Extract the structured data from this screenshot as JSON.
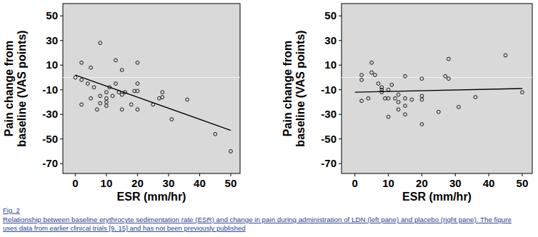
{
  "chart_data": [
    {
      "type": "scatter",
      "x_label": "ESR (mm/hr)",
      "y_label": [
        "Pain change from",
        "baseline (VAS points)"
      ],
      "xlim": [
        -4,
        53
      ],
      "xticks": [
        0,
        10,
        20,
        30,
        40,
        50
      ],
      "ylim": [
        -78,
        60
      ],
      "yticks": [
        50,
        30,
        10,
        -10,
        -30,
        -50,
        -70
      ],
      "refline": 0,
      "series": [
        {
          "type": "scatter",
          "marker": "circle-open",
          "color": "#000000",
          "x": [
            0,
            2,
            2,
            2,
            4,
            5,
            5,
            6,
            7,
            8,
            8,
            8,
            10,
            10,
            10,
            10,
            11,
            12,
            13,
            13,
            14,
            15,
            15,
            15,
            16,
            18,
            19,
            20,
            20,
            20,
            20,
            25,
            27,
            28,
            28,
            31,
            36,
            45,
            50
          ],
          "values": [
            0,
            -2,
            12,
            -22,
            -5,
            8,
            -17,
            -8,
            -26,
            28,
            -15,
            -21,
            -12,
            -17,
            -20,
            -23,
            -8,
            -15,
            14,
            -5,
            -12,
            6,
            -14,
            -26,
            -12,
            -22,
            -11,
            -11,
            -5,
            12,
            -26,
            -22,
            -17,
            -12,
            -16,
            -34,
            -18,
            -46,
            -60
          ]
        },
        {
          "type": "line",
          "line_style": "solid",
          "color": "#000000",
          "x": [
            0,
            50
          ],
          "values": [
            2,
            -43
          ]
        }
      ]
    },
    {
      "type": "scatter",
      "x_label": "ESR (mm/hr)",
      "y_label": [
        "Pain change from",
        "baseline (VAS points)"
      ],
      "xlim": [
        -4,
        53
      ],
      "xticks": [
        0,
        10,
        20,
        30,
        40,
        50
      ],
      "ylim": [
        -78,
        60
      ],
      "yticks": [
        50,
        30,
        10,
        -10,
        -30,
        -50,
        -70
      ],
      "refline": 0,
      "series": [
        {
          "type": "scatter",
          "marker": "circle-open",
          "color": "#000000",
          "x": [
            2,
            2,
            2,
            4,
            5,
            5,
            6,
            7,
            8,
            8,
            8,
            9,
            10,
            10,
            10,
            11,
            12,
            13,
            13,
            13,
            15,
            15,
            15,
            15,
            17,
            20,
            20,
            20,
            20,
            25,
            27,
            28,
            28,
            31,
            36,
            45,
            50
          ],
          "values": [
            2,
            -2,
            -19,
            -17,
            4,
            12,
            2,
            -5,
            -10,
            -12,
            -8,
            -17,
            -10,
            -32,
            -17,
            -6,
            -17,
            -14,
            -20,
            -26,
            -30,
            -23,
            -17,
            1,
            -18,
            -1,
            -15,
            -18,
            -38,
            -28,
            1,
            -1,
            15,
            -24,
            -16,
            18,
            -12
          ]
        },
        {
          "type": "line",
          "line_style": "solid",
          "color": "#000000",
          "x": [
            0,
            50
          ],
          "values": [
            -12,
            -9
          ]
        }
      ]
    }
  ],
  "figure_label": "Fig. 2",
  "caption": [
    "Relationship between baseline erythrocyte sedimentation rate (ESR) and change in pain during administration of LDN (left pane) and placebo (right pane). The figure",
    "uses data from earlier clinical trials [9, 15] and has not been previously published"
  ]
}
